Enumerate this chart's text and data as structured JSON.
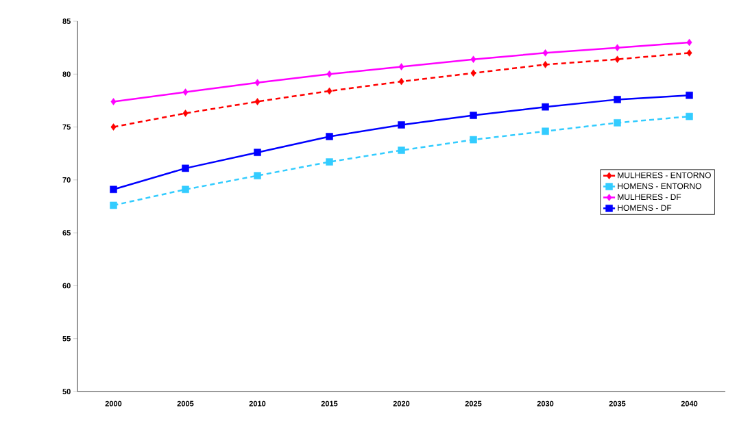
{
  "chart_data": {
    "type": "line",
    "categories": [
      "2000",
      "2005",
      "2010",
      "2015",
      "2020",
      "2025",
      "2030",
      "2035",
      "2040"
    ],
    "series": [
      {
        "name": "MULHERES - ENTORNO",
        "color": "#ff0000",
        "marker": "diamond",
        "line_style": "dashed",
        "values": [
          75.0,
          76.3,
          77.4,
          78.4,
          79.3,
          80.1,
          80.9,
          81.4,
          82.0
        ]
      },
      {
        "name": "HOMENS - ENTORNO",
        "color": "#33ccff",
        "marker": "square",
        "line_style": "dashed",
        "values": [
          67.6,
          69.1,
          70.4,
          71.7,
          72.8,
          73.8,
          74.6,
          75.4,
          76.0
        ]
      },
      {
        "name": "MULHERES - DF",
        "color": "#ff00ff",
        "marker": "diamond",
        "line_style": "solid",
        "values": [
          77.4,
          78.3,
          79.2,
          80.0,
          80.7,
          81.4,
          82.0,
          82.5,
          83.0
        ]
      },
      {
        "name": "HOMENS - DF",
        "color": "#0000ff",
        "marker": "square",
        "line_style": "solid",
        "values": [
          69.1,
          71.1,
          72.6,
          74.1,
          75.2,
          76.1,
          76.9,
          77.6,
          78.0
        ]
      }
    ],
    "ylim": [
      50,
      85
    ],
    "yticks": [
      50,
      55,
      60,
      65,
      70,
      75,
      80,
      85
    ],
    "grid": false,
    "legend": "right"
  }
}
